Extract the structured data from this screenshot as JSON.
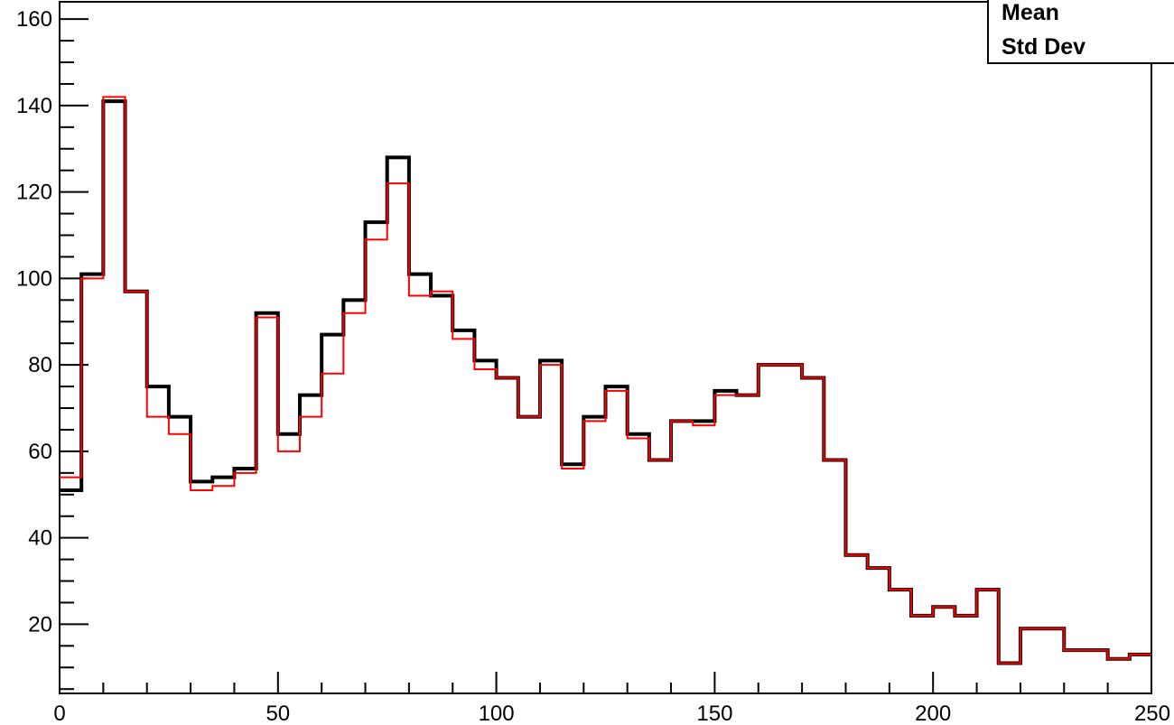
{
  "chart_data": {
    "type": "histogram",
    "xlim": [
      0,
      250
    ],
    "ylim": [
      4,
      164
    ],
    "bin_width": 5,
    "x_ticks": [
      0,
      50,
      100,
      150,
      200,
      250
    ],
    "y_ticks": [
      20,
      40,
      60,
      80,
      100,
      120,
      140,
      160
    ],
    "grid": false,
    "stats_box": {
      "lines": [
        "Mean",
        "Std Dev"
      ],
      "placement": "top-right"
    },
    "series": [
      {
        "color": "#000000",
        "bin_edges_start": 0,
        "values": [
          51,
          101,
          141,
          97,
          75,
          68,
          53,
          54,
          56,
          92,
          64,
          73,
          87,
          95,
          113,
          128,
          101,
          96,
          88,
          81,
          77,
          68,
          81,
          57,
          68,
          75,
          64,
          58,
          67,
          67,
          74,
          73,
          80,
          80,
          77,
          58,
          36,
          33,
          28,
          22,
          24,
          22,
          28,
          11,
          19,
          19,
          14,
          14,
          12,
          13
        ]
      },
      {
        "color": "#ff0000",
        "bin_edges_start": 0,
        "values": [
          54,
          100,
          142,
          97,
          68,
          64,
          51,
          52,
          55,
          91,
          60,
          68,
          78,
          92,
          109,
          122,
          96,
          97,
          86,
          79,
          77,
          68,
          80,
          56,
          67,
          74,
          63,
          58,
          67,
          66,
          73,
          73,
          80,
          80,
          77,
          58,
          36,
          33,
          28,
          22,
          24,
          22,
          28,
          11,
          19,
          19,
          14,
          14,
          12,
          13
        ]
      }
    ]
  }
}
